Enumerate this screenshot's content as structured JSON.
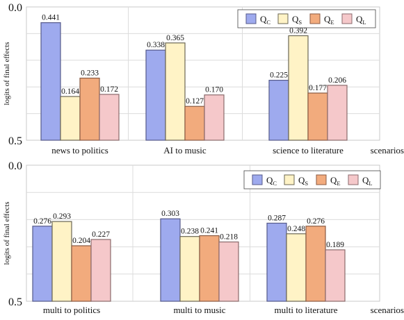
{
  "series_styles": [
    {
      "fill": "#9eaaee",
      "stroke": "#55598a"
    },
    {
      "fill": "#fff3c6",
      "stroke": "#6a6653"
    },
    {
      "fill": "#f2ab7d",
      "stroke": "#8a5a42"
    },
    {
      "fill": "#f5c8ca",
      "stroke": "#8a6a6c"
    }
  ],
  "chart_data": [
    {
      "type": "bar",
      "ylabel": "logits of final effects",
      "xlabel": "scenarios",
      "ylim": [
        0,
        0.5
      ],
      "yticks": [
        "0.0",
        "0.5"
      ],
      "legend_position": "top-right",
      "categories": [
        "news to politics",
        "AI to music",
        "science to literature"
      ],
      "series": [
        {
          "name": "Q",
          "sub": "C",
          "values": [
            0.441,
            0.338,
            0.225
          ],
          "labels": [
            "0.441",
            "0.338",
            "0.225"
          ]
        },
        {
          "name": "Q",
          "sub": "S",
          "values": [
            0.164,
            0.365,
            0.392
          ],
          "labels": [
            "0.164",
            "0.365",
            "0.392"
          ]
        },
        {
          "name": "Q",
          "sub": "E",
          "values": [
            0.233,
            0.127,
            0.177
          ],
          "labels": [
            "0.233",
            "0.127",
            "0.177"
          ]
        },
        {
          "name": "Q",
          "sub": "L",
          "values": [
            0.172,
            0.17,
            0.206
          ],
          "labels": [
            "0.172",
            "0.170",
            "0.206"
          ]
        }
      ]
    },
    {
      "type": "bar",
      "ylabel": "logits of final effects",
      "xlabel": "scenarios",
      "ylim": [
        0,
        0.5
      ],
      "yticks": [
        "0.0",
        "0.5"
      ],
      "legend_position": "top-right",
      "categories": [
        "multi to politics",
        "multi to music",
        "multi to literature"
      ],
      "series": [
        {
          "name": "Q",
          "sub": "C",
          "values": [
            0.276,
            0.303,
            0.287
          ],
          "labels": [
            "0.276",
            "0.303",
            "0.287"
          ]
        },
        {
          "name": "Q",
          "sub": "S",
          "values": [
            0.293,
            0.238,
            0.248
          ],
          "labels": [
            "0.293",
            "0.238",
            "0.248"
          ]
        },
        {
          "name": "Q",
          "sub": "E",
          "values": [
            0.204,
            0.241,
            0.276
          ],
          "labels": [
            "0.204",
            "0.241",
            "0.276"
          ]
        },
        {
          "name": "Q",
          "sub": "L",
          "values": [
            0.227,
            0.218,
            0.189
          ],
          "labels": [
            "0.227",
            "0.218",
            "0.189"
          ]
        }
      ]
    }
  ]
}
